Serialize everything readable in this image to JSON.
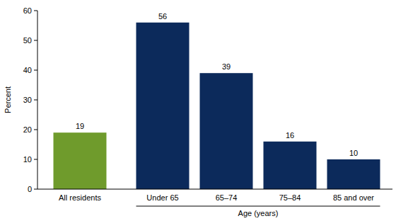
{
  "chart_data": {
    "type": "bar",
    "categories": [
      "All residents",
      "Under 65",
      "65–74",
      "75–84",
      "85 and over"
    ],
    "values": [
      19,
      56,
      39,
      16,
      10
    ],
    "colors": [
      "#6f9b2c",
      "#0c2a5b",
      "#0c2a5b",
      "#0c2a5b",
      "#0c2a5b"
    ],
    "xlabel": "Age (years)",
    "ylabel": "Percent",
    "ylim": [
      0,
      60
    ],
    "yticks": [
      0,
      10,
      20,
      30,
      40,
      50,
      60
    ],
    "grid": false,
    "data_labels": true
  }
}
